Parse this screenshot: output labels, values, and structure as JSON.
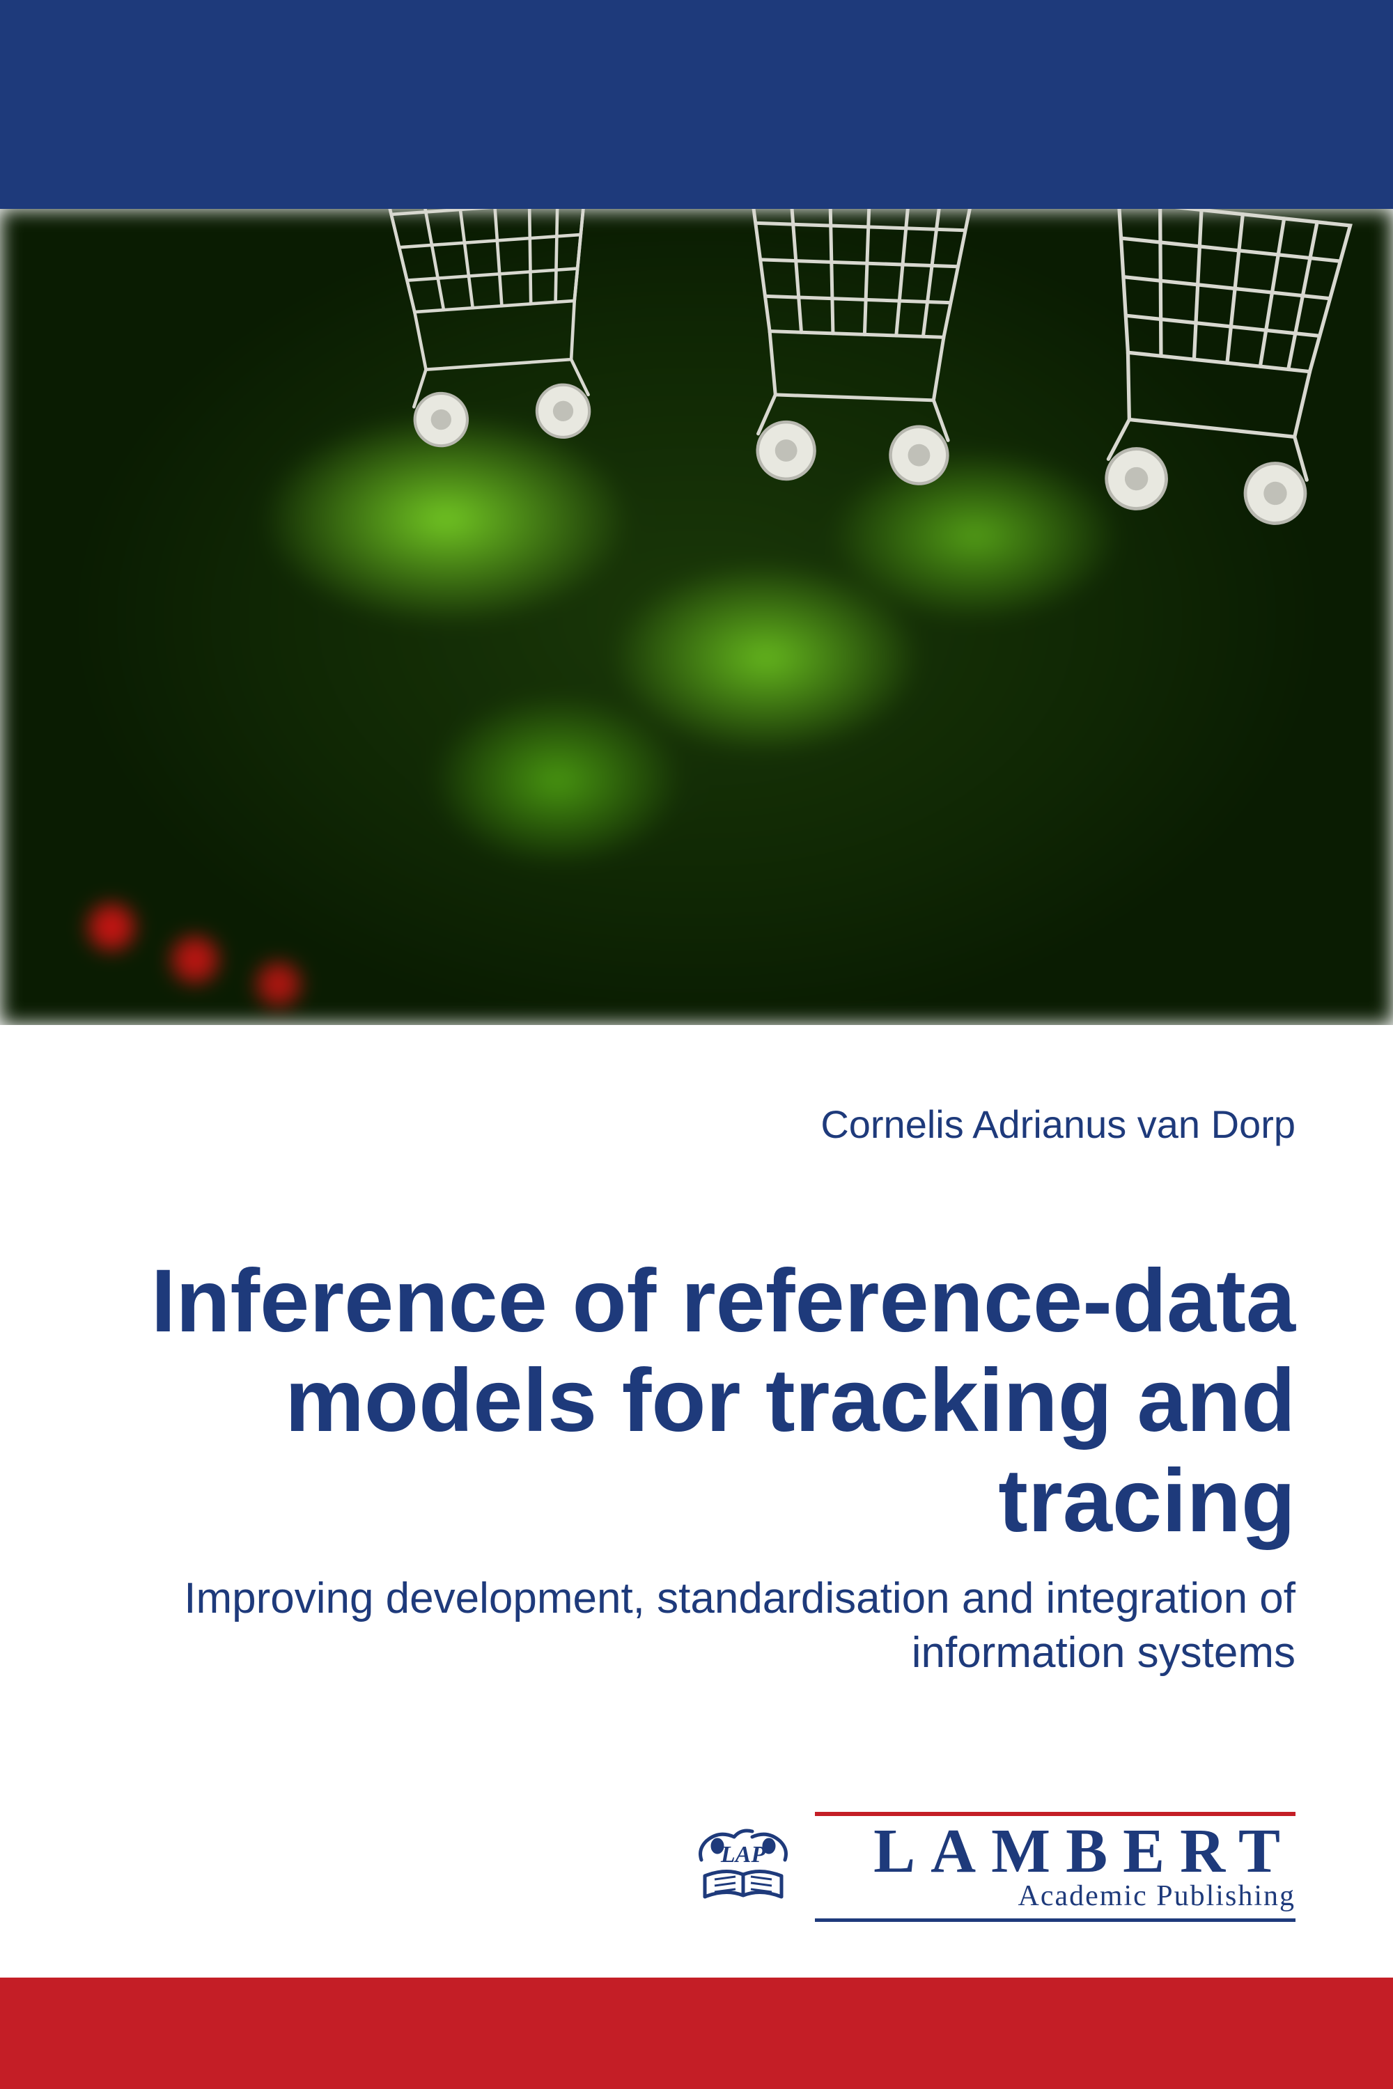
{
  "colors": {
    "top_band": "#1e3a7b",
    "bottom_band": "#c41e26",
    "title": "#1e3a7b",
    "subtitle": "#1e3a7b",
    "author": "#1e3a7b",
    "publisher": "#1e3a7b",
    "pub_accent": "#c41e26",
    "background": "#ffffff"
  },
  "layout": {
    "top_band_height": 300,
    "image_area_height": 1172,
    "bottom_band_height": 160
  },
  "author": "Cornelis Adrianus van Dorp",
  "title": "Inference of reference-data models for tracking and tracing",
  "subtitle": "Improving development, standardisation and integration of information systems",
  "publisher": {
    "badge": "LAP",
    "name": "LAMBERT",
    "sub": "Academic Publishing"
  }
}
